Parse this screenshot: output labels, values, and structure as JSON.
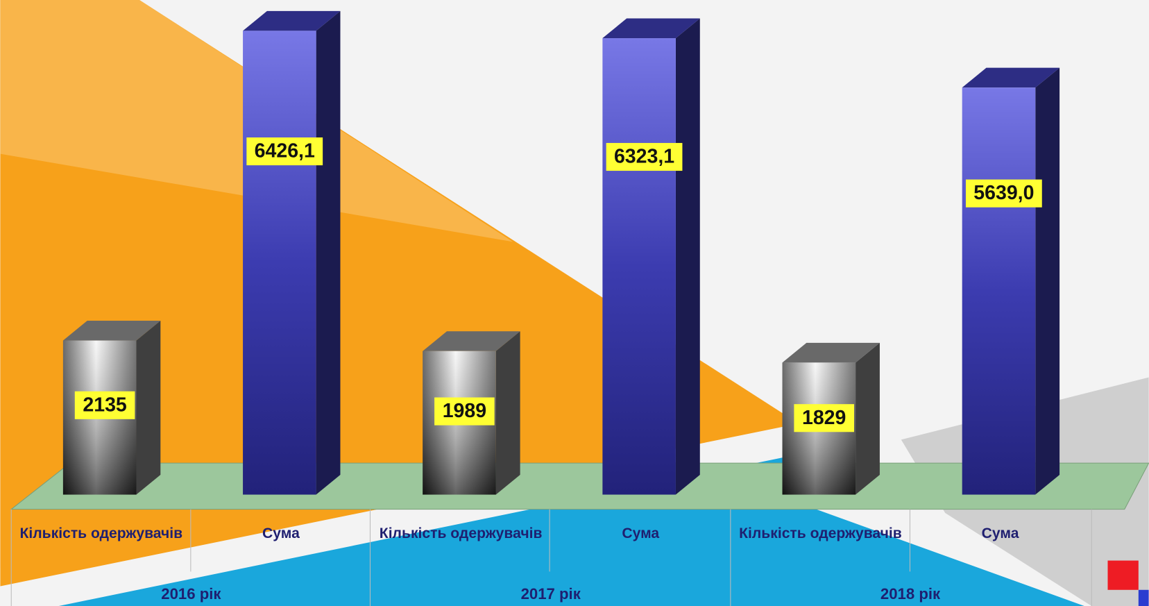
{
  "chart_data": {
    "type": "bar3d",
    "categories": [
      "Кількість одержувачів",
      "Сума",
      "Кількість одержувачів",
      "Сума",
      "Кількість одержувачів",
      "Сума"
    ],
    "groups": [
      "2016 рік",
      "2017 рік",
      "2018 рік"
    ],
    "values": [
      2135,
      6426.1,
      1989,
      6323.1,
      1829,
      5639.0
    ],
    "value_labels": [
      "2135",
      "6426,1",
      "1989",
      "6323,1",
      "1829",
      "5639,0"
    ],
    "colors": [
      "#8c8c8c",
      "#3c3cb0",
      "#8c8c8c",
      "#3c3cb0",
      "#8c8c8c",
      "#3c3cb0"
    ]
  }
}
